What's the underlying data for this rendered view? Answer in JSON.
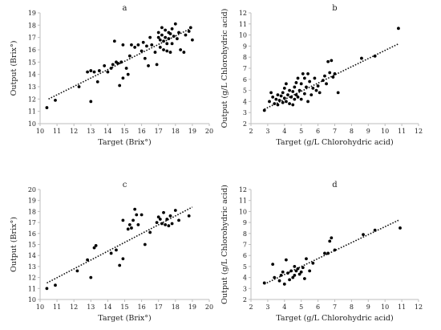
{
  "chart_data": [
    {
      "type": "scatter",
      "panel_label": "a",
      "xlabel": "Target (Brix°)",
      "ylabel": "Output (Brix°)",
      "xlim": [
        10,
        20
      ],
      "ylim": [
        10,
        19
      ],
      "xticks": [
        10,
        11,
        12,
        13,
        14,
        15,
        16,
        17,
        18,
        19,
        20
      ],
      "yticks": [
        10,
        11,
        12,
        13,
        14,
        15,
        16,
        17,
        18,
        19
      ],
      "grid": false,
      "trendline": {
        "style": "dotted",
        "x": [
          10.5,
          19.0
        ],
        "y": [
          12.0,
          17.8
        ]
      },
      "points": [
        [
          10.4,
          11.3
        ],
        [
          10.9,
          11.9
        ],
        [
          12.3,
          13.0
        ],
        [
          12.8,
          14.2
        ],
        [
          13.0,
          11.8
        ],
        [
          13.0,
          14.3
        ],
        [
          13.2,
          14.2
        ],
        [
          13.4,
          13.4
        ],
        [
          13.5,
          14.3
        ],
        [
          13.8,
          14.7
        ],
        [
          14.0,
          14.2
        ],
        [
          14.2,
          14.5
        ],
        [
          14.3,
          14.8
        ],
        [
          14.4,
          16.7
        ],
        [
          14.5,
          15.0
        ],
        [
          14.6,
          14.9
        ],
        [
          14.7,
          13.1
        ],
        [
          14.8,
          15.0
        ],
        [
          14.9,
          13.7
        ],
        [
          14.9,
          16.4
        ],
        [
          15.1,
          14.5
        ],
        [
          15.2,
          14.0
        ],
        [
          15.3,
          15.5
        ],
        [
          15.4,
          16.4
        ],
        [
          15.6,
          16.2
        ],
        [
          15.8,
          16.4
        ],
        [
          16.0,
          15.9
        ],
        [
          16.1,
          16.6
        ],
        [
          16.2,
          15.3
        ],
        [
          16.3,
          16.3
        ],
        [
          16.4,
          14.7
        ],
        [
          16.5,
          17.0
        ],
        [
          16.6,
          16.4
        ],
        [
          16.8,
          15.8
        ],
        [
          16.9,
          14.8
        ],
        [
          17.0,
          17.4
        ],
        [
          17.0,
          17.0
        ],
        [
          17.1,
          16.8
        ],
        [
          17.1,
          16.2
        ],
        [
          17.2,
          17.8
        ],
        [
          17.2,
          17.2
        ],
        [
          17.3,
          16.7
        ],
        [
          17.3,
          16.0
        ],
        [
          17.4,
          17.6
        ],
        [
          17.4,
          17.0
        ],
        [
          17.5,
          16.5
        ],
        [
          17.5,
          15.9
        ],
        [
          17.6,
          17.4
        ],
        [
          17.6,
          16.9
        ],
        [
          17.7,
          17.3
        ],
        [
          17.7,
          15.8
        ],
        [
          17.8,
          17.7
        ],
        [
          17.8,
          16.5
        ],
        [
          17.9,
          17.1
        ],
        [
          18.0,
          18.1
        ],
        [
          18.1,
          16.9
        ],
        [
          18.2,
          17.4
        ],
        [
          18.3,
          16.0
        ],
        [
          18.5,
          15.8
        ],
        [
          18.6,
          17.2
        ],
        [
          18.8,
          17.5
        ],
        [
          18.9,
          17.8
        ],
        [
          19.0,
          16.8
        ]
      ]
    },
    {
      "type": "scatter",
      "panel_label": "b",
      "xlabel": "Target (g/L Chlorohydric acid)",
      "ylabel": "Output (g/L Chlorohydric acid)",
      "xlim": [
        2,
        12
      ],
      "ylim": [
        2,
        12
      ],
      "xticks": [
        2,
        3,
        4,
        5,
        6,
        7,
        8,
        9,
        10,
        11,
        12
      ],
      "yticks": [
        2,
        3,
        4,
        5,
        6,
        7,
        8,
        9,
        10,
        11,
        12
      ],
      "grid": false,
      "trendline": {
        "style": "dotted",
        "x": [
          2.8,
          10.8
        ],
        "y": [
          3.3,
          9.2
        ]
      },
      "points": [
        [
          2.8,
          3.2
        ],
        [
          3.1,
          4.0
        ],
        [
          3.2,
          4.8
        ],
        [
          3.3,
          4.4
        ],
        [
          3.4,
          3.8
        ],
        [
          3.5,
          4.2
        ],
        [
          3.6,
          4.6
        ],
        [
          3.6,
          3.7
        ],
        [
          3.7,
          4.1
        ],
        [
          3.8,
          4.5
        ],
        [
          3.9,
          3.9
        ],
        [
          3.9,
          4.8
        ],
        [
          4.0,
          4.3
        ],
        [
          4.0,
          5.2
        ],
        [
          4.1,
          4.0
        ],
        [
          4.1,
          5.6
        ],
        [
          4.2,
          4.6
        ],
        [
          4.3,
          3.8
        ],
        [
          4.3,
          5.0
        ],
        [
          4.4,
          4.4
        ],
        [
          4.5,
          4.9
        ],
        [
          4.5,
          3.7
        ],
        [
          4.6,
          5.3
        ],
        [
          4.6,
          4.2
        ],
        [
          4.7,
          5.7
        ],
        [
          4.7,
          4.6
        ],
        [
          4.8,
          6.1
        ],
        [
          4.8,
          4.4
        ],
        [
          4.9,
          5.0
        ],
        [
          5.0,
          4.2
        ],
        [
          5.0,
          5.6
        ],
        [
          5.1,
          6.5
        ],
        [
          5.2,
          4.7
        ],
        [
          5.2,
          6.1
        ],
        [
          5.3,
          5.3
        ],
        [
          5.4,
          6.5
        ],
        [
          5.4,
          4.0
        ],
        [
          5.5,
          5.8
        ],
        [
          5.6,
          4.6
        ],
        [
          5.7,
          5.2
        ],
        [
          5.8,
          6.1
        ],
        [
          5.9,
          5.0
        ],
        [
          6.0,
          5.4
        ],
        [
          6.1,
          4.8
        ],
        [
          6.3,
          5.9
        ],
        [
          6.4,
          6.3
        ],
        [
          6.5,
          5.6
        ],
        [
          6.6,
          7.6
        ],
        [
          6.7,
          6.6
        ],
        [
          6.8,
          7.7
        ],
        [
          6.9,
          6.2
        ],
        [
          7.0,
          6.5
        ],
        [
          7.2,
          4.8
        ],
        [
          8.6,
          7.9
        ],
        [
          9.4,
          8.1
        ],
        [
          10.8,
          10.6
        ]
      ]
    },
    {
      "type": "scatter",
      "panel_label": "c",
      "xlabel": "Target (Brix°)",
      "ylabel": "Output (Brix°)",
      "xlim": [
        10,
        20
      ],
      "ylim": [
        10,
        20
      ],
      "xticks": [
        10,
        11,
        12,
        13,
        14,
        15,
        16,
        17,
        18,
        19,
        20
      ],
      "yticks": [
        10,
        11,
        12,
        13,
        14,
        15,
        16,
        17,
        18,
        19,
        20
      ],
      "grid": false,
      "trendline": {
        "style": "dotted",
        "x": [
          10.4,
          19.0
        ],
        "y": [
          11.5,
          18.4
        ]
      },
      "points": [
        [
          10.4,
          11.0
        ],
        [
          10.9,
          11.3
        ],
        [
          12.2,
          12.6
        ],
        [
          12.8,
          13.6
        ],
        [
          13.0,
          12.0
        ],
        [
          13.2,
          14.7
        ],
        [
          13.3,
          14.9
        ],
        [
          14.2,
          14.2
        ],
        [
          14.5,
          14.5
        ],
        [
          14.7,
          13.1
        ],
        [
          14.9,
          13.7
        ],
        [
          14.9,
          17.2
        ],
        [
          15.2,
          16.4
        ],
        [
          15.3,
          16.8
        ],
        [
          15.4,
          16.5
        ],
        [
          15.5,
          17.2
        ],
        [
          15.6,
          18.2
        ],
        [
          15.7,
          17.7
        ],
        [
          15.8,
          16.8
        ],
        [
          16.0,
          17.7
        ],
        [
          16.2,
          15.0
        ],
        [
          16.5,
          16.1
        ],
        [
          16.9,
          17.0
        ],
        [
          17.0,
          17.5
        ],
        [
          17.1,
          17.3
        ],
        [
          17.2,
          16.9
        ],
        [
          17.3,
          17.9
        ],
        [
          17.4,
          16.8
        ],
        [
          17.5,
          17.3
        ],
        [
          17.6,
          16.7
        ],
        [
          17.7,
          17.6
        ],
        [
          17.8,
          16.9
        ],
        [
          18.0,
          18.1
        ],
        [
          18.2,
          17.2
        ],
        [
          18.8,
          17.6
        ]
      ]
    },
    {
      "type": "scatter",
      "panel_label": "d",
      "xlabel": "Target (g/L Chlorohydric acid)",
      "ylabel": "Output (g/L Chlorohydric acid)",
      "xlim": [
        2,
        12
      ],
      "ylim": [
        2,
        12
      ],
      "xticks": [
        2,
        3,
        4,
        5,
        6,
        7,
        8,
        9,
        10,
        11,
        12
      ],
      "yticks": [
        2,
        3,
        4,
        5,
        6,
        7,
        8,
        9,
        10,
        11,
        12
      ],
      "grid": false,
      "trendline": {
        "style": "dotted",
        "x": [
          2.8,
          10.8
        ],
        "y": [
          3.4,
          9.2
        ]
      },
      "points": [
        [
          2.8,
          3.5
        ],
        [
          3.3,
          5.2
        ],
        [
          3.4,
          4.0
        ],
        [
          3.7,
          3.7
        ],
        [
          3.8,
          4.2
        ],
        [
          3.9,
          4.5
        ],
        [
          4.0,
          3.4
        ],
        [
          4.1,
          5.6
        ],
        [
          4.2,
          4.4
        ],
        [
          4.3,
          3.8
        ],
        [
          4.4,
          4.6
        ],
        [
          4.5,
          4.0
        ],
        [
          4.6,
          5.0
        ],
        [
          4.6,
          4.2
        ],
        [
          4.7,
          4.6
        ],
        [
          4.8,
          4.8
        ],
        [
          4.9,
          4.3
        ],
        [
          5.0,
          4.5
        ],
        [
          5.1,
          4.9
        ],
        [
          5.2,
          3.9
        ],
        [
          5.3,
          5.7
        ],
        [
          5.5,
          4.6
        ],
        [
          5.7,
          5.3
        ],
        [
          6.4,
          6.2
        ],
        [
          6.6,
          6.2
        ],
        [
          6.7,
          7.3
        ],
        [
          6.8,
          7.6
        ],
        [
          7.0,
          6.5
        ],
        [
          8.7,
          7.9
        ],
        [
          9.4,
          8.3
        ],
        [
          10.9,
          8.5
        ]
      ]
    }
  ]
}
